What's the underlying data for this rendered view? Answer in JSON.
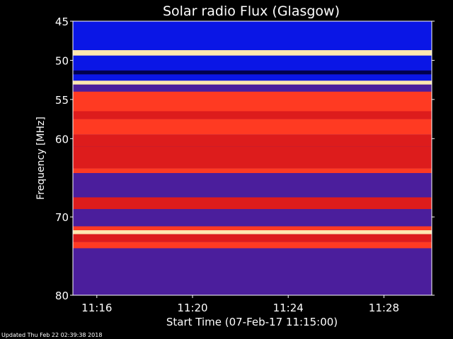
{
  "chart_data": {
    "type": "heatmap",
    "title": "Solar radio Flux (Glasgow)",
    "xlabel": "Start Time (07-Feb-17 11:15:00)",
    "ylabel": "Frequency [MHz]",
    "x_ticks": [
      "11:16",
      "11:20",
      "11:24",
      "11:28"
    ],
    "x_tick_minutes": [
      1,
      5,
      9,
      13
    ],
    "xlim_minutes": [
      0,
      15
    ],
    "y_ticks": [
      45,
      50,
      55,
      60,
      70,
      80
    ],
    "ylim": [
      45,
      80
    ],
    "colors": {
      "background": "#000000",
      "quiet": "#0a16e6",
      "dark_band": "#000050",
      "mid": "#4b1e9c",
      "active": "#dd1c1c",
      "hot": "#ff3a22",
      "line": "#ffe8b0"
    },
    "bands": [
      {
        "from": 45.0,
        "to": 48.7,
        "level": "quiet"
      },
      {
        "from": 48.7,
        "to": 49.4,
        "level": "line"
      },
      {
        "from": 49.4,
        "to": 51.3,
        "level": "quiet"
      },
      {
        "from": 51.3,
        "to": 51.8,
        "level": "dark_band"
      },
      {
        "from": 51.8,
        "to": 52.6,
        "level": "quiet"
      },
      {
        "from": 52.6,
        "to": 53.1,
        "level": "line"
      },
      {
        "from": 53.1,
        "to": 54.0,
        "level": "mid"
      },
      {
        "from": 54.0,
        "to": 56.5,
        "level": "hot"
      },
      {
        "from": 56.5,
        "to": 57.5,
        "level": "active"
      },
      {
        "from": 57.5,
        "to": 59.5,
        "level": "hot"
      },
      {
        "from": 59.5,
        "to": 61.0,
        "level": "active"
      },
      {
        "from": 61.0,
        "to": 63.8,
        "level": "active"
      },
      {
        "from": 63.8,
        "to": 64.4,
        "level": "hot"
      },
      {
        "from": 64.4,
        "to": 67.5,
        "level": "mid"
      },
      {
        "from": 67.5,
        "to": 69.0,
        "level": "active"
      },
      {
        "from": 69.0,
        "to": 71.2,
        "level": "mid"
      },
      {
        "from": 71.2,
        "to": 71.7,
        "level": "hot"
      },
      {
        "from": 71.7,
        "to": 72.2,
        "level": "line"
      },
      {
        "from": 72.2,
        "to": 73.2,
        "level": "active"
      },
      {
        "from": 73.2,
        "to": 74.0,
        "level": "hot"
      },
      {
        "from": 74.0,
        "to": 80.0,
        "level": "mid"
      }
    ]
  },
  "footer": {
    "updated": "Updated Thu Feb 22 02:39:38 2018"
  }
}
